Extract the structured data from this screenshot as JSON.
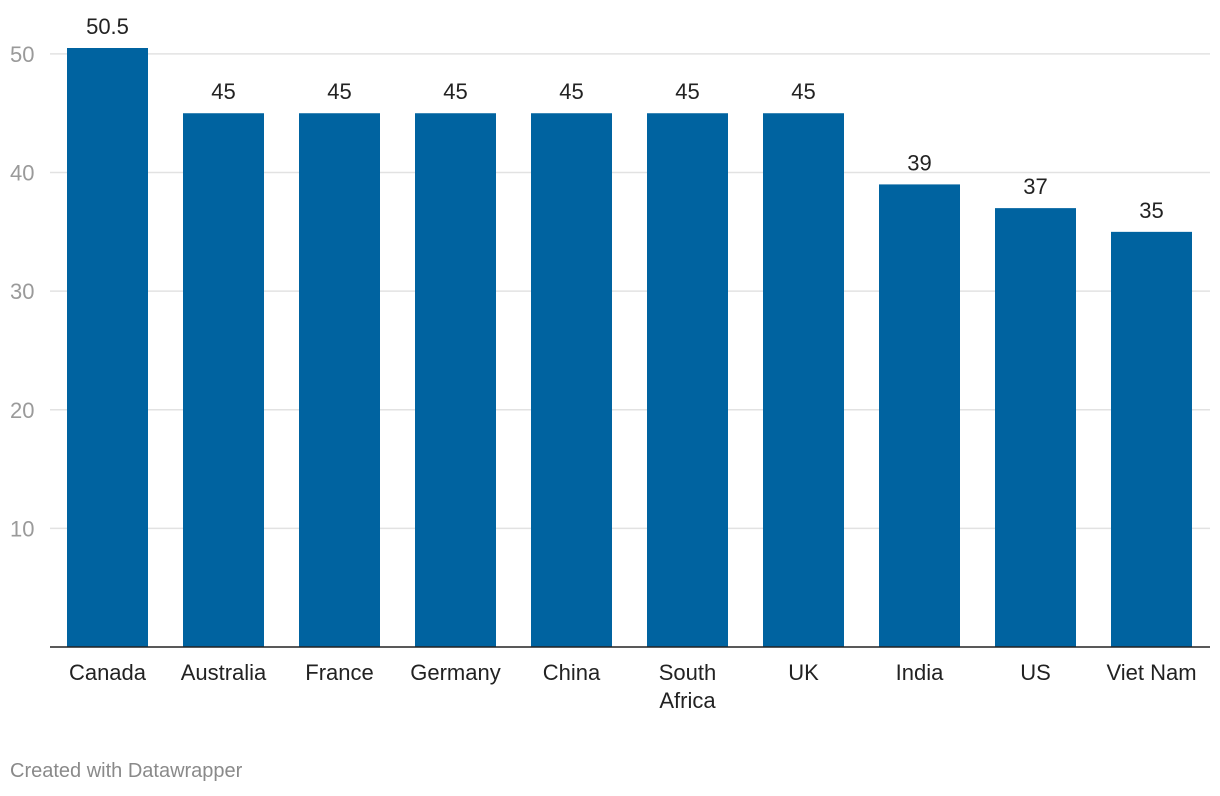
{
  "chart_data": {
    "type": "bar",
    "categories": [
      "Canada",
      "Australia",
      "France",
      "Germany",
      "China",
      "South Africa",
      "UK",
      "India",
      "US",
      "Viet Nam"
    ],
    "category_lines": [
      [
        "Canada"
      ],
      [
        "Australia"
      ],
      [
        "France"
      ],
      [
        "Germany"
      ],
      [
        "China"
      ],
      [
        "South",
        "Africa"
      ],
      [
        "UK"
      ],
      [
        "India"
      ],
      [
        "US"
      ],
      [
        "Viet Nam"
      ]
    ],
    "values": [
      50.5,
      45,
      45,
      45,
      45,
      45,
      45,
      39,
      37,
      35
    ],
    "value_labels": [
      "50.5",
      "45",
      "45",
      "45",
      "45",
      "45",
      "45",
      "39",
      "37",
      "35"
    ],
    "ylim": [
      0,
      50.5
    ],
    "yticks": [
      10,
      20,
      30,
      40,
      50
    ],
    "grid": true,
    "bar_color": "#0063a0",
    "title": "",
    "xlabel": "",
    "ylabel": ""
  },
  "footer": {
    "credit": "Created with Datawrapper"
  }
}
